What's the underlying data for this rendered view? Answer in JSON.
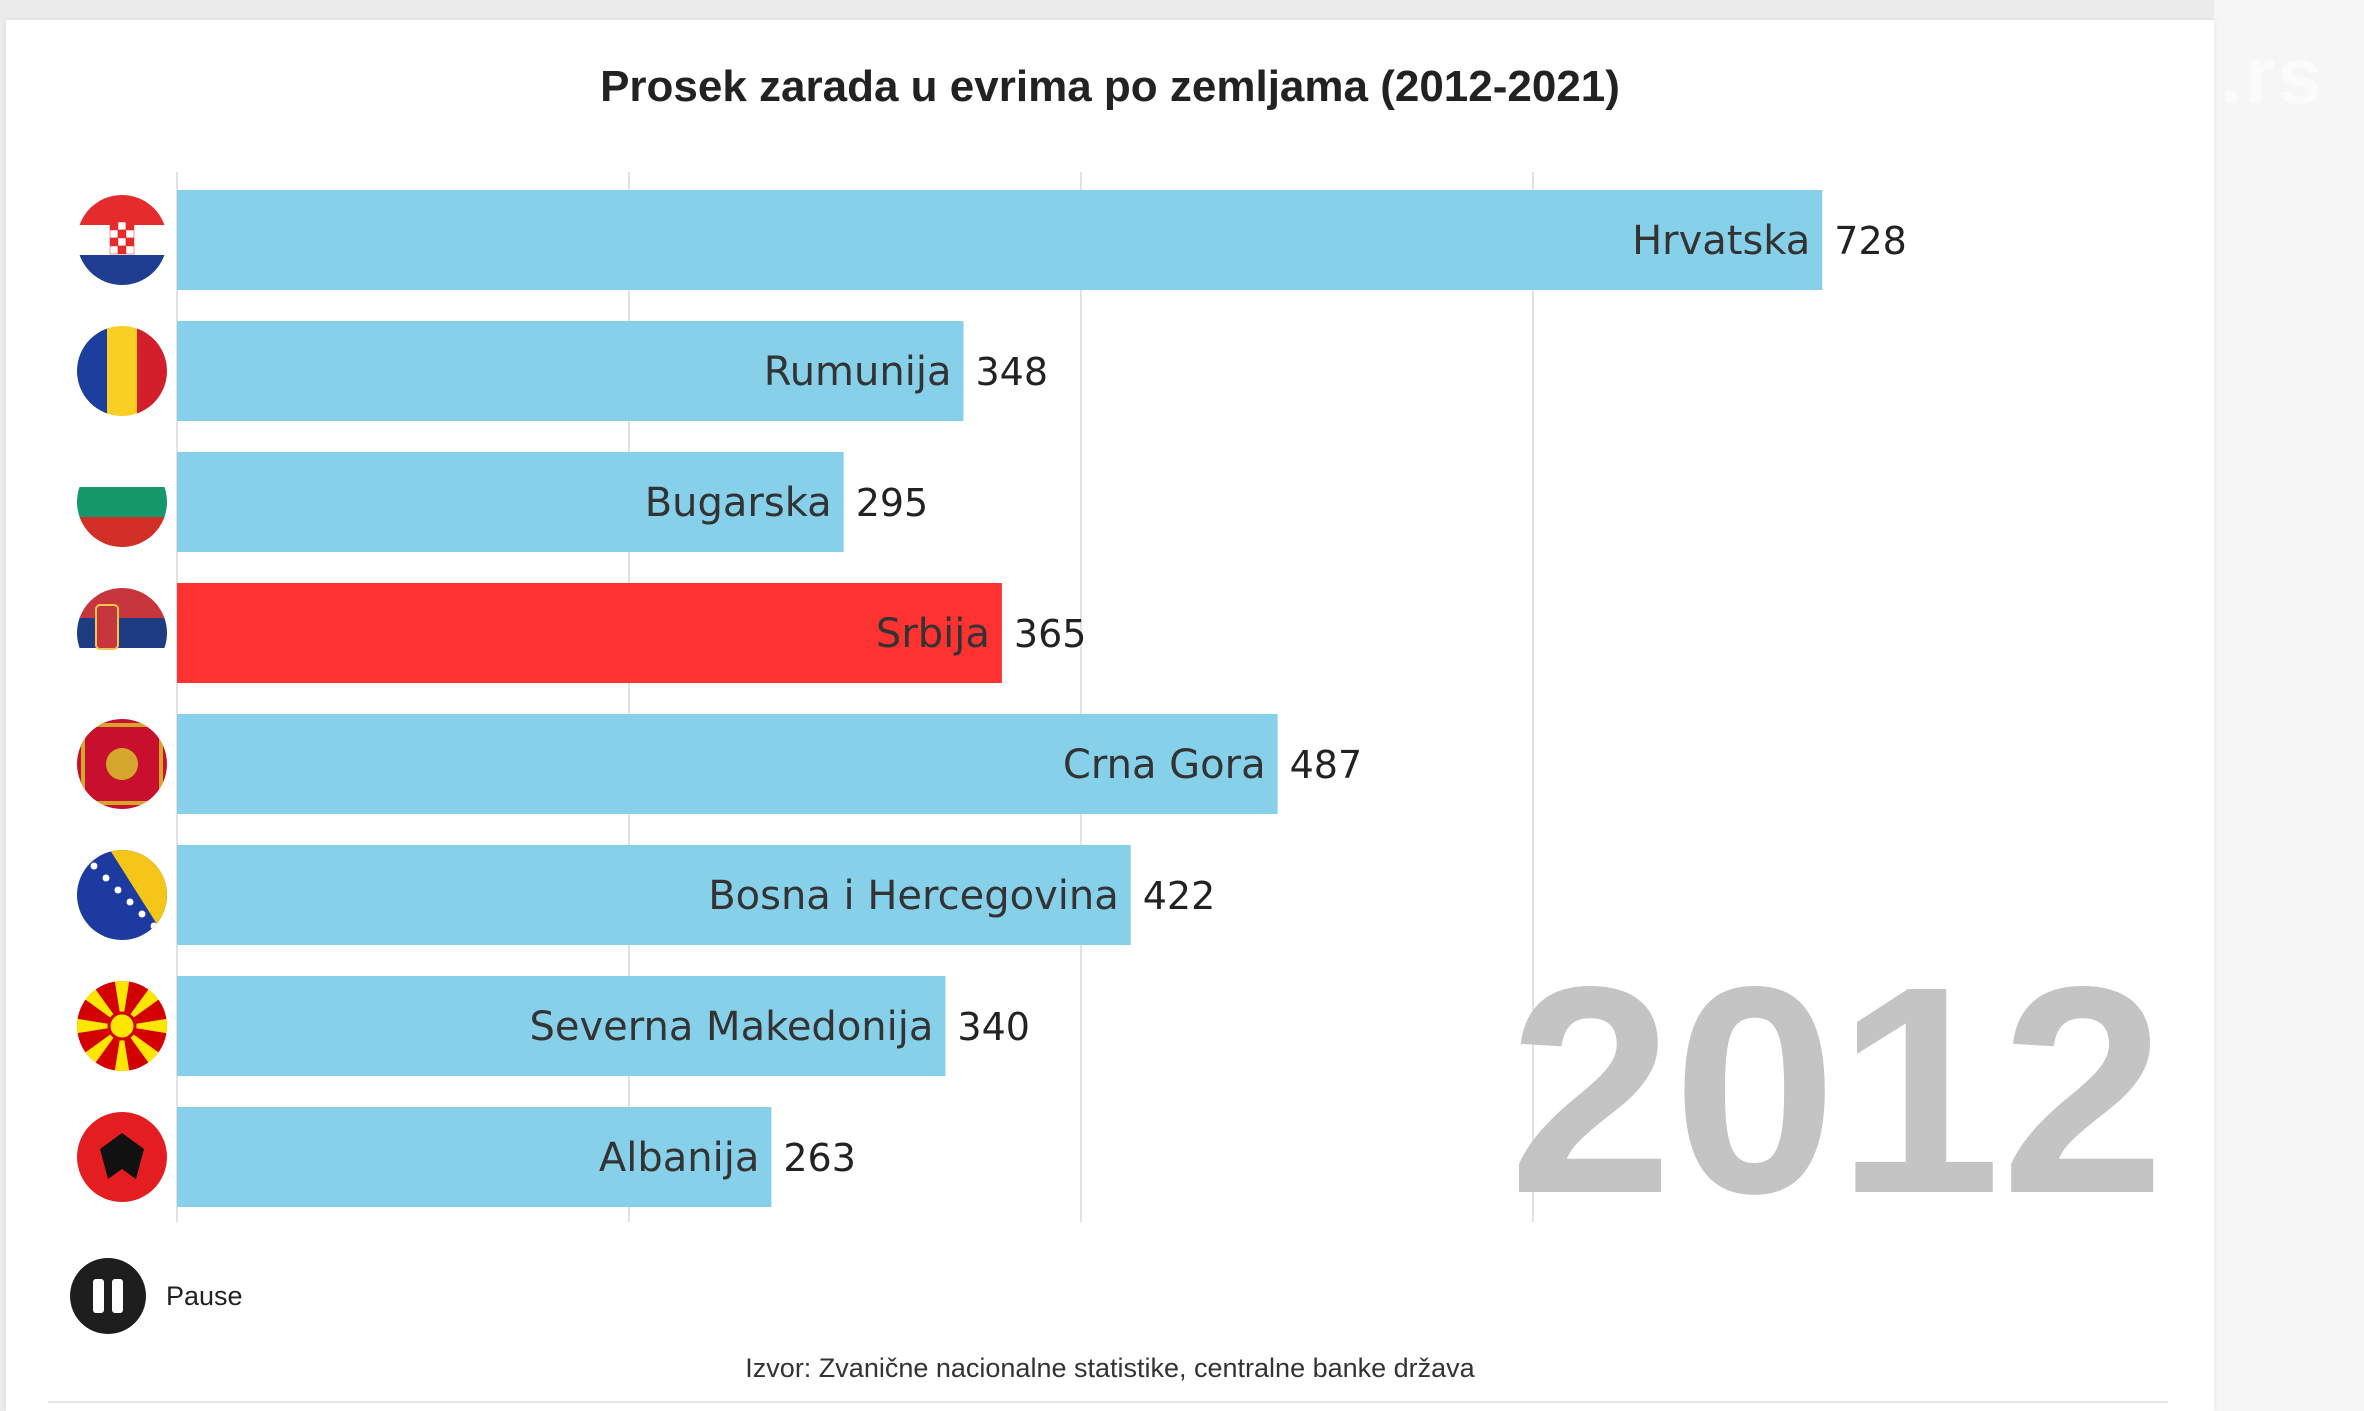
{
  "chart_data": {
    "type": "bar",
    "orientation": "horizontal",
    "title": "Prosek zarada u evrima po zemljama (2012-2021)",
    "year": "2012",
    "categories": [
      "Hrvatska",
      "Rumunija",
      "Bugarska",
      "Srbija",
      "Crna Gora",
      "Bosna i Hercegovina",
      "Severna Makedonija",
      "Albanija"
    ],
    "values": [
      728,
      348,
      295,
      365,
      487,
      422,
      340,
      263
    ],
    "flags": [
      "croatia-flag",
      "romania-flag",
      "bulgaria-flag",
      "serbia-flag",
      "montenegro-flag",
      "bosnia-flag",
      "north-macedonia-flag",
      "albania-flag"
    ],
    "bar_colors": [
      "#86d0e9",
      "#86d0e9",
      "#86d0e9",
      "#ff3232",
      "#86d0e9",
      "#86d0e9",
      "#86d0e9",
      "#86d0e9"
    ],
    "xlim": [
      0,
      800
    ],
    "grid": true,
    "xlabel": "",
    "ylabel": ""
  },
  "controls": {
    "pause_label": "Pause"
  },
  "source": "Izvor: Zvanične nacionalne statistike, centralne banke država",
  "watermark": ".rs",
  "colors": {
    "bar_default": "#86d0e9",
    "bar_highlight": "#ff3232",
    "year_text": "#c4c4c4"
  }
}
